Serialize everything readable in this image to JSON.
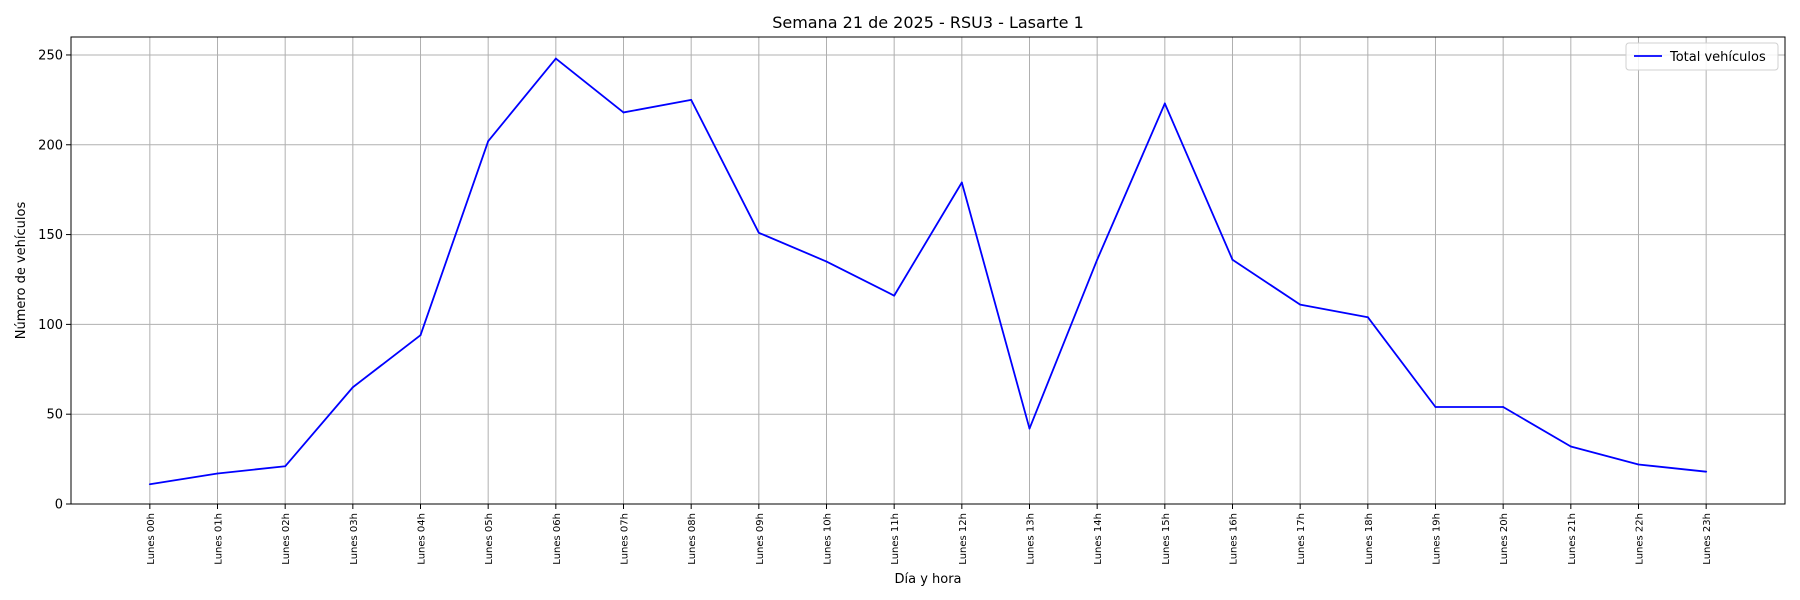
{
  "chart_data": {
    "type": "line",
    "title": "Semana 21 de 2025 - RSU3 - Lasarte 1",
    "xlabel": "Día y hora",
    "ylabel": "Número de vehículos",
    "categories": [
      "Lunes 00h",
      "Lunes 01h",
      "Lunes 02h",
      "Lunes 03h",
      "Lunes 04h",
      "Lunes 05h",
      "Lunes 06h",
      "Lunes 07h",
      "Lunes 08h",
      "Lunes 09h",
      "Lunes 10h",
      "Lunes 11h",
      "Lunes 12h",
      "Lunes 13h",
      "Lunes 14h",
      "Lunes 15h",
      "Lunes 16h",
      "Lunes 17h",
      "Lunes 18h",
      "Lunes 19h",
      "Lunes 20h",
      "Lunes 21h",
      "Lunes 22h",
      "Lunes 23h"
    ],
    "series": [
      {
        "name": "Total vehículos",
        "color": "#0000ff",
        "values": [
          11,
          17,
          21,
          65,
          94,
          202,
          248,
          218,
          225,
          151,
          135,
          116,
          179,
          42,
          136,
          223,
          136,
          111,
          104,
          54,
          54,
          32,
          22,
          18
        ]
      }
    ],
    "ylim": [
      0,
      260
    ],
    "yticks": [
      0,
      50,
      100,
      150,
      200,
      250
    ],
    "grid": true,
    "legend_position": "top-right"
  }
}
